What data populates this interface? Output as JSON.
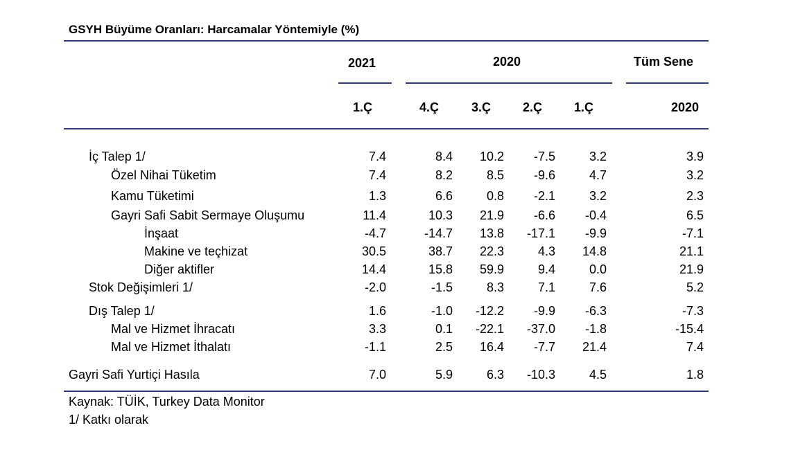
{
  "title": "GSYH Büyüme Oranları: Harcamalar Yöntemiyle (%)",
  "header": {
    "group_2021": "2021",
    "group_2020": "2020",
    "group_full": "Tüm Sene",
    "columns": [
      "1.Ç",
      "4.Ç",
      "3.Ç",
      "2.Ç",
      "1.Ç",
      "2020"
    ]
  },
  "rows": [
    {
      "label": "İç Talep 1/",
      "values": [
        "7.4",
        "8.4",
        "10.2",
        "-7.5",
        "3.2",
        "3.9"
      ]
    },
    {
      "label": "Özel Nihai Tüketim",
      "values": [
        "7.4",
        "8.2",
        "8.5",
        "-9.6",
        "4.7",
        "3.2"
      ]
    },
    {
      "label": "Kamu Tüketimi",
      "values": [
        "1.3",
        "6.6",
        "0.8",
        "-2.1",
        "3.2",
        "2.3"
      ]
    },
    {
      "label": "Gayri Safi Sabit Sermaye Oluşumu",
      "values": [
        "11.4",
        "10.3",
        "21.9",
        "-6.6",
        "-0.4",
        "6.5"
      ]
    },
    {
      "label": "İnşaat",
      "values": [
        "-4.7",
        "-14.7",
        "13.8",
        "-17.1",
        "-9.9",
        "-7.1"
      ]
    },
    {
      "label": "Makine ve teçhizat",
      "values": [
        "30.5",
        "38.7",
        "22.3",
        "4.3",
        "14.8",
        "21.1"
      ]
    },
    {
      "label": "Diğer aktifler",
      "values": [
        "14.4",
        "15.8",
        "59.9",
        "9.4",
        "0.0",
        "21.9"
      ]
    },
    {
      "label": "Stok Değişimleri 1/",
      "values": [
        "-2.0",
        "-1.5",
        "8.3",
        "7.1",
        "7.6",
        "5.2"
      ]
    },
    {
      "label": "Dış Talep 1/",
      "values": [
        "1.6",
        "-1.0",
        "-12.2",
        "-9.9",
        "-6.3",
        "-7.3"
      ]
    },
    {
      "label": "Mal ve Hizmet İhracatı",
      "values": [
        "3.3",
        "0.1",
        "-22.1",
        "-37.0",
        "-1.8",
        "-15.4"
      ]
    },
    {
      "label": "Mal ve Hizmet İthalatı",
      "values": [
        "-1.1",
        "2.5",
        "16.4",
        "-7.7",
        "21.4",
        "7.4"
      ]
    },
    {
      "label": "Gayri Safi Yurtiçi Hasıla",
      "values": [
        "7.0",
        "5.9",
        "6.3",
        "-10.3",
        "4.5",
        "1.8"
      ]
    }
  ],
  "footnotes": {
    "source": "Kaynak: TÜİK, Turkey Data Monitor",
    "note": "1/ Katkı olarak"
  },
  "colors": {
    "rule": "#2e3b7a"
  }
}
